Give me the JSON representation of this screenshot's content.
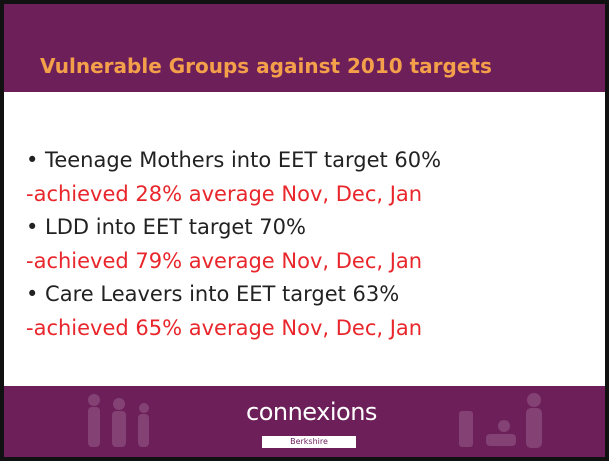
{
  "header": {
    "title": "Vulnerable Groups against 2010 targets"
  },
  "body": {
    "items": [
      {
        "target": "• Teenage Mothers into EET target 60%",
        "achieved": "-achieved 28% average Nov, Dec, Jan"
      },
      {
        "target": "• LDD into EET target 70%",
        "achieved": "-achieved 79% average Nov, Dec, Jan"
      },
      {
        "target": "• Care Leavers into EET target 63%",
        "achieved": "-achieved 65% average Nov, Dec, Jan"
      }
    ]
  },
  "footer": {
    "logo": "connexions",
    "sublogo": "Berkshire"
  }
}
